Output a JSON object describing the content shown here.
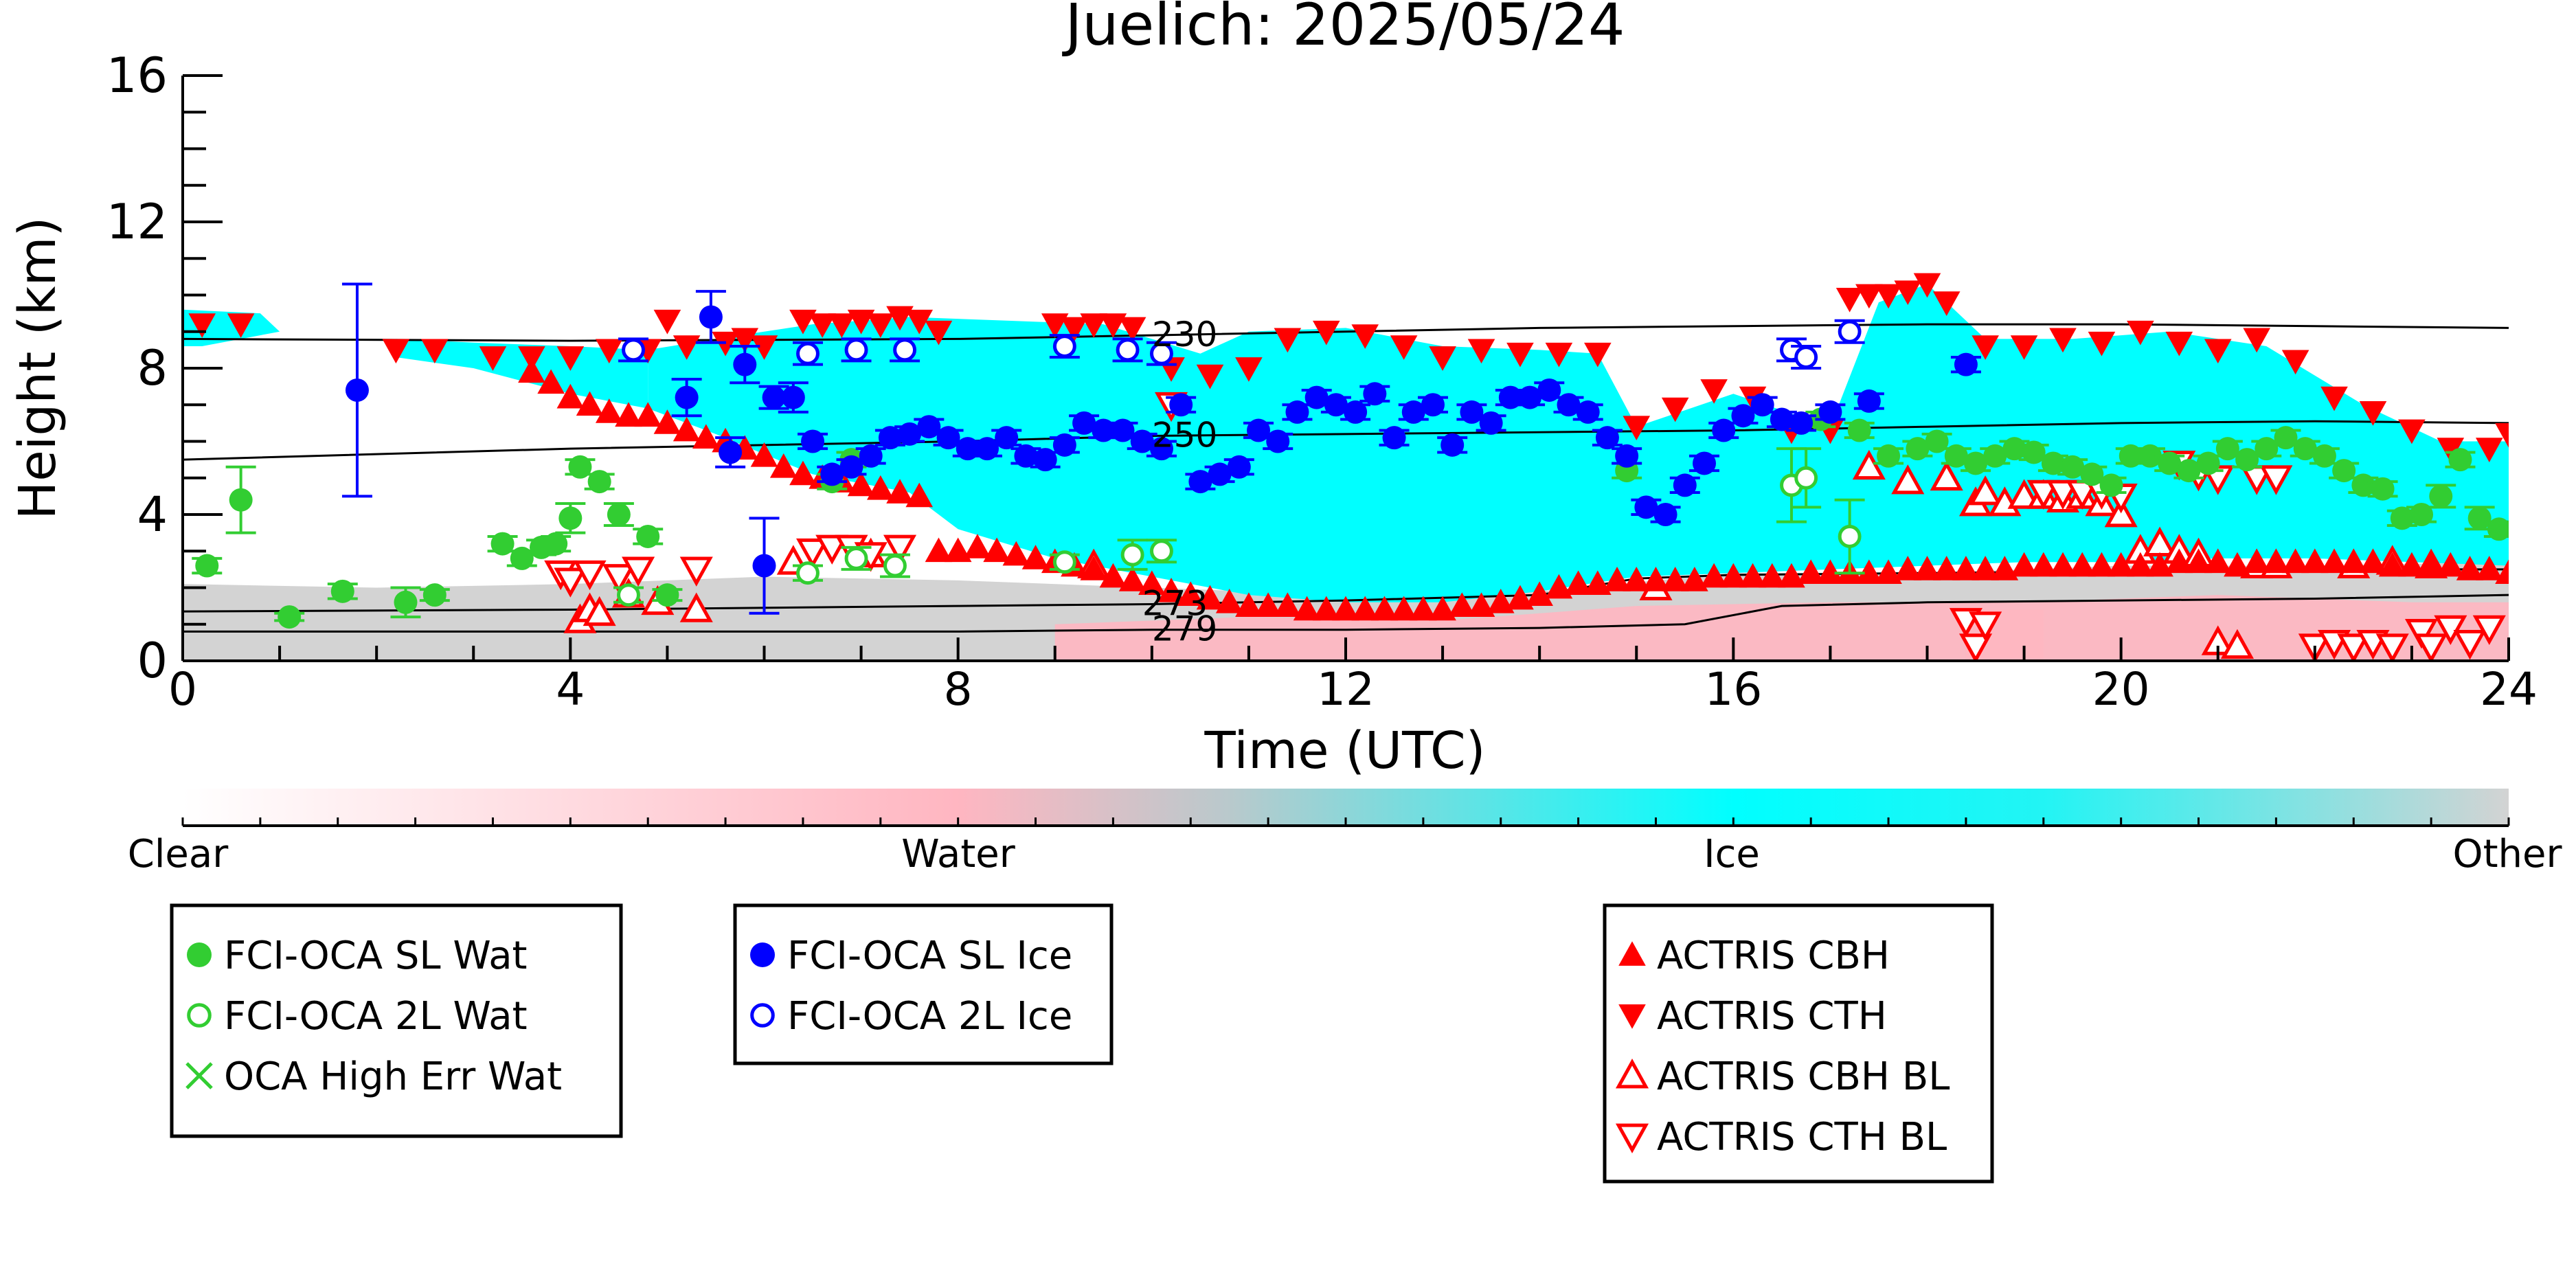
{
  "chart_data": {
    "type": "scatter",
    "title": "Juelich: 2025/05/24",
    "xlabel": "Time (UTC)",
    "ylabel": "Height (km)",
    "xlim": [
      0,
      24
    ],
    "ylim": [
      0,
      16
    ],
    "xticks": [
      0,
      4,
      8,
      12,
      16,
      20,
      24
    ],
    "yticks": [
      0,
      4,
      8,
      12,
      16
    ],
    "grid": false,
    "colorbar": {
      "labels": [
        "Clear",
        "Water",
        "Ice",
        "Other"
      ],
      "colors": [
        "#ffffff",
        "#ffb6c1",
        "#00ffff",
        "#d3d3d3"
      ]
    },
    "legends": [
      {
        "placement": "bottom-left",
        "entries": [
          {
            "label": "FCI-OCA SL Wat",
            "marker": "filled-circle",
            "color": "#32cd32"
          },
          {
            "label": "FCI-OCA 2L Wat",
            "marker": "open-circle",
            "color": "#32cd32"
          },
          {
            "label": "OCA High Err Wat",
            "marker": "cross",
            "color": "#32cd32"
          }
        ]
      },
      {
        "placement": "bottom-center-left",
        "entries": [
          {
            "label": "FCI-OCA SL Ice",
            "marker": "filled-circle",
            "color": "#0000ff"
          },
          {
            "label": "FCI-OCA 2L Ice",
            "marker": "open-circle",
            "color": "#0000ff"
          }
        ]
      },
      {
        "placement": "bottom-center-right",
        "entries": [
          {
            "label": "ACTRIS CBH",
            "marker": "filled-up-triangle",
            "color": "#ff0000"
          },
          {
            "label": "ACTRIS CTH",
            "marker": "filled-down-triangle",
            "color": "#ff0000"
          },
          {
            "label": "ACTRIS CBH BL",
            "marker": "open-up-triangle",
            "color": "#ff0000"
          },
          {
            "label": "ACTRIS CTH BL",
            "marker": "open-down-triangle",
            "color": "#ff0000"
          }
        ]
      }
    ],
    "contours": [
      {
        "label": "230",
        "x": [
          0,
          4,
          8,
          10,
          12,
          14,
          16,
          18,
          20,
          22,
          24
        ],
        "y": [
          8.8,
          8.75,
          8.8,
          8.9,
          9.0,
          9.1,
          9.15,
          9.2,
          9.2,
          9.15,
          9.1
        ]
      },
      {
        "label": "250",
        "x": [
          0,
          4,
          8,
          10,
          12,
          14,
          16,
          18,
          20,
          22,
          24
        ],
        "y": [
          5.5,
          5.8,
          6.0,
          6.15,
          6.2,
          6.25,
          6.3,
          6.4,
          6.5,
          6.55,
          6.5
        ]
      },
      {
        "label": "273",
        "x": [
          0,
          4,
          8,
          10,
          12,
          14,
          15,
          16,
          18,
          20,
          22,
          24
        ],
        "y": [
          1.35,
          1.4,
          1.5,
          1.55,
          1.65,
          1.8,
          2.25,
          2.35,
          2.4,
          2.45,
          2.5,
          2.5
        ]
      },
      {
        "label": "279",
        "x": [
          0,
          4,
          8,
          10,
          12,
          14,
          15.5,
          16.5,
          18,
          20,
          22,
          24
        ],
        "y": [
          0.8,
          0.8,
          0.8,
          0.85,
          0.85,
          0.9,
          1.0,
          1.5,
          1.6,
          1.65,
          1.7,
          1.8
        ]
      }
    ],
    "series": [
      {
        "name": "FCI-OCA SL Wat",
        "x": [
          0.25,
          0.6,
          1.1,
          1.65,
          2.3,
          2.6,
          3.3,
          3.5,
          3.7,
          3.85,
          4.0,
          4.1,
          4.3,
          4.5,
          4.8,
          5.0,
          6.7,
          6.9,
          14.9,
          16.9,
          17.3,
          17.6,
          17.9,
          18.1,
          18.3,
          18.5,
          18.7,
          18.9,
          19.1,
          19.3,
          19.5,
          19.7,
          19.9,
          20.1,
          20.3,
          20.5,
          20.7,
          20.9,
          21.1,
          21.3,
          21.5,
          21.7,
          21.9,
          22.1,
          22.3,
          22.5,
          22.7,
          22.9,
          23.1,
          23.3,
          23.5,
          23.7,
          23.9
        ],
        "y": [
          2.6,
          4.4,
          1.2,
          1.9,
          1.6,
          1.8,
          3.2,
          2.8,
          3.1,
          3.2,
          3.9,
          5.3,
          4.9,
          4.0,
          3.4,
          1.8,
          4.9,
          5.5,
          5.2,
          6.6,
          6.3,
          5.6,
          5.8,
          6.0,
          5.6,
          5.4,
          5.6,
          5.8,
          5.7,
          5.4,
          5.3,
          5.1,
          4.8,
          5.6,
          5.6,
          5.4,
          5.2,
          5.4,
          5.8,
          5.5,
          5.8,
          6.1,
          5.8,
          5.6,
          5.2,
          4.8,
          4.7,
          3.9,
          4.0,
          4.5,
          5.5,
          3.9,
          3.6
        ],
        "err": [
          0.2,
          0.9,
          0.1,
          0.2,
          0.4,
          0.15,
          0.2,
          0.2,
          0.2,
          0.2,
          0.4,
          0.2,
          0.2,
          0.3,
          0.2,
          0.15,
          0.2,
          0.2,
          0.2,
          0.2,
          0.2,
          0.2,
          0.2,
          0.2,
          0.2,
          0.2,
          0.2,
          0.2,
          0.2,
          0.2,
          0.2,
          0.2,
          0.2,
          0.2,
          0.2,
          0.2,
          0.2,
          0.2,
          0.2,
          0.2,
          0.2,
          0.2,
          0.2,
          0.2,
          0.2,
          0.2,
          0.2,
          0.2,
          0.2,
          0.3,
          0.2,
          0.3,
          0.2
        ]
      },
      {
        "name": "FCI-OCA 2L Wat",
        "x": [
          4.6,
          6.45,
          6.95,
          7.35,
          9.1,
          9.8,
          10.1,
          16.6,
          16.75,
          17.2
        ],
        "y": [
          1.8,
          2.4,
          2.8,
          2.6,
          2.7,
          2.9,
          3.0,
          4.8,
          5.0,
          3.4
        ],
        "err": [
          0.2,
          0.2,
          0.3,
          0.3,
          0.2,
          0.4,
          0.3,
          1.0,
          0.8,
          1.0
        ]
      },
      {
        "name": "OCA High Err Wat",
        "x": [],
        "y": []
      },
      {
        "name": "FCI-OCA SL Ice",
        "x": [
          1.8,
          5.2,
          5.45,
          5.65,
          5.8,
          6.0,
          6.1,
          6.3,
          6.5,
          6.7,
          6.9,
          7.1,
          7.3,
          7.5,
          7.7,
          7.9,
          8.1,
          8.3,
          8.5,
          8.7,
          8.9,
          9.1,
          9.3,
          9.5,
          9.7,
          9.9,
          10.1,
          10.3,
          10.5,
          10.7,
          10.9,
          11.1,
          11.3,
          11.5,
          11.7,
          11.9,
          12.1,
          12.3,
          12.5,
          12.7,
          12.9,
          13.1,
          13.3,
          13.5,
          13.7,
          13.9,
          14.1,
          14.3,
          14.5,
          14.7,
          14.9,
          15.1,
          15.3,
          15.5,
          15.7,
          15.9,
          16.1,
          16.3,
          16.5,
          16.7,
          17.0,
          17.4,
          18.4
        ],
        "y": [
          7.4,
          7.2,
          9.4,
          5.7,
          8.1,
          2.6,
          7.2,
          7.2,
          6.0,
          5.1,
          5.3,
          5.6,
          6.1,
          6.2,
          6.4,
          6.1,
          5.8,
          5.8,
          6.1,
          5.6,
          5.5,
          5.9,
          6.5,
          6.3,
          6.3,
          6.0,
          5.8,
          7.0,
          4.9,
          5.1,
          5.3,
          6.3,
          6.0,
          6.8,
          7.2,
          7.0,
          6.8,
          7.3,
          6.1,
          6.8,
          7.0,
          5.9,
          6.8,
          6.5,
          7.2,
          7.2,
          7.4,
          7.0,
          6.8,
          6.1,
          5.6,
          4.2,
          4.0,
          4.8,
          5.4,
          6.3,
          6.7,
          7.0,
          6.6,
          6.5,
          6.8,
          7.1,
          8.1
        ],
        "err": [
          2.9,
          0.5,
          0.7,
          0.4,
          0.5,
          1.3,
          0.3,
          0.4,
          0.2,
          0.2,
          0.2,
          0.2,
          0.2,
          0.2,
          0.2,
          0.2,
          0.2,
          0.2,
          0.2,
          0.2,
          0.2,
          0.2,
          0.2,
          0.2,
          0.2,
          0.2,
          0.2,
          0.2,
          0.2,
          0.2,
          0.2,
          0.2,
          0.2,
          0.2,
          0.2,
          0.2,
          0.2,
          0.2,
          0.2,
          0.2,
          0.2,
          0.2,
          0.2,
          0.2,
          0.2,
          0.2,
          0.2,
          0.2,
          0.2,
          0.2,
          0.2,
          0.2,
          0.2,
          0.2,
          0.2,
          0.2,
          0.2,
          0.2,
          0.2,
          0.2,
          0.2,
          0.2,
          0.2
        ]
      },
      {
        "name": "FCI-OCA 2L Ice",
        "x": [
          4.65,
          6.45,
          6.95,
          7.45,
          9.1,
          9.75,
          10.1,
          16.6,
          16.75,
          17.2
        ],
        "y": [
          8.5,
          8.4,
          8.5,
          8.5,
          8.6,
          8.5,
          8.4,
          8.5,
          8.3,
          9.0
        ],
        "err": [
          0.3,
          0.3,
          0.3,
          0.3,
          0.3,
          0.3,
          0.3,
          0.3,
          0.3,
          0.3
        ]
      },
      {
        "name": "ACTRIS CBH",
        "x": [
          3.6,
          3.8,
          4.0,
          4.2,
          4.4,
          4.6,
          4.8,
          5.0,
          5.2,
          5.4,
          5.6,
          5.8,
          6.0,
          6.2,
          6.4,
          6.6,
          6.8,
          7.0,
          7.2,
          7.4,
          7.6,
          7.8,
          8.0,
          8.2,
          8.4,
          8.6,
          8.8,
          9.0,
          9.2,
          9.4,
          9.6,
          9.8,
          10.0,
          10.2,
          10.4,
          10.6,
          10.8,
          11.0,
          11.2,
          11.4,
          11.6,
          11.8,
          12.0,
          12.2,
          12.4,
          12.6,
          12.8,
          13.0,
          13.2,
          13.4,
          13.6,
          13.8,
          14.0,
          14.2,
          14.4,
          14.6,
          14.8,
          15.0,
          15.2,
          15.4,
          15.6,
          15.8,
          16.0,
          16.2,
          16.4,
          16.6,
          16.8,
          17.0,
          17.2,
          17.4,
          17.6,
          17.8,
          18.0,
          18.2,
          18.4,
          18.6,
          18.8,
          19.0,
          19.2,
          19.4,
          19.6,
          19.8,
          20.0,
          20.2,
          20.4,
          20.6,
          20.8,
          21.0,
          21.2,
          21.4,
          21.6,
          21.8,
          22.0,
          22.2,
          22.4,
          22.6,
          22.8,
          23.0,
          23.2,
          23.4,
          23.6,
          23.8,
          24.0
        ],
        "y": [
          7.9,
          7.6,
          7.2,
          7.0,
          6.8,
          6.7,
          6.7,
          6.5,
          6.3,
          6.1,
          6.0,
          5.8,
          5.6,
          5.3,
          5.1,
          5.0,
          4.9,
          4.8,
          4.7,
          4.6,
          4.5,
          3.0,
          3.0,
          3.1,
          3.0,
          2.9,
          2.8,
          2.7,
          2.6,
          2.5,
          2.3,
          2.2,
          2.1,
          1.9,
          1.8,
          1.7,
          1.6,
          1.5,
          1.5,
          1.5,
          1.4,
          1.4,
          1.4,
          1.4,
          1.4,
          1.4,
          1.4,
          1.4,
          1.5,
          1.5,
          1.6,
          1.7,
          1.8,
          2.0,
          2.1,
          2.1,
          2.2,
          2.2,
          2.2,
          2.2,
          2.2,
          2.3,
          2.3,
          2.3,
          2.3,
          2.3,
          2.4,
          2.4,
          2.4,
          2.4,
          2.4,
          2.5,
          2.5,
          2.5,
          2.5,
          2.5,
          2.5,
          2.6,
          2.6,
          2.6,
          2.6,
          2.6,
          2.6,
          2.6,
          2.6,
          2.7,
          2.7,
          2.7,
          2.6,
          2.7,
          2.7,
          2.7,
          2.7,
          2.7,
          2.7,
          2.7,
          2.6,
          2.6,
          2.6,
          2.6,
          2.5,
          2.5,
          2.4
        ]
      },
      {
        "name": "ACTRIS CTH",
        "x": [
          0.2,
          0.6,
          2.2,
          2.6,
          3.2,
          3.6,
          4.0,
          4.4,
          4.8,
          5.0,
          5.2,
          5.6,
          5.8,
          6.0,
          6.4,
          6.6,
          6.8,
          7.0,
          7.2,
          7.4,
          7.6,
          7.8,
          9.0,
          9.2,
          9.4,
          9.6,
          9.8,
          10.2,
          10.6,
          11.0,
          11.4,
          11.8,
          12.2,
          12.6,
          13.0,
          13.4,
          13.8,
          14.2,
          14.6,
          15.0,
          15.4,
          15.8,
          16.2,
          16.6,
          17.0,
          17.2,
          17.4,
          17.6,
          17.8,
          18.0,
          18.2,
          18.6,
          19.0,
          19.4,
          19.8,
          20.2,
          20.6,
          21.0,
          21.4,
          21.8,
          22.2,
          22.6,
          23.0,
          23.4,
          23.8,
          24.0
        ],
        "y": [
          9.2,
          9.2,
          8.5,
          8.5,
          8.3,
          8.3,
          8.3,
          8.5,
          8.5,
          9.3,
          8.6,
          8.7,
          8.8,
          8.6,
          9.3,
          9.2,
          9.2,
          9.3,
          9.2,
          9.4,
          9.3,
          9.0,
          9.2,
          9.1,
          9.2,
          9.2,
          9.1,
          8.0,
          7.8,
          8.0,
          8.8,
          9.0,
          8.9,
          8.6,
          8.3,
          8.5,
          8.4,
          8.4,
          8.4,
          6.4,
          6.9,
          7.4,
          7.2,
          6.3,
          6.3,
          9.9,
          10.0,
          10.0,
          10.1,
          10.3,
          9.8,
          8.6,
          8.6,
          8.8,
          8.7,
          9.0,
          8.7,
          8.5,
          8.8,
          8.2,
          7.2,
          6.8,
          6.3,
          5.8,
          5.8,
          6.2
        ]
      },
      {
        "name": "ACTRIS CBH BL",
        "x": [
          4.1,
          4.2,
          4.3,
          4.6,
          4.9,
          5.3,
          6.3,
          7.1,
          9.4,
          15.2,
          17.4,
          17.8,
          18.2,
          18.5,
          18.6,
          18.8,
          19.0,
          19.2,
          19.4,
          19.6,
          19.8,
          20.0,
          20.2,
          20.4,
          20.6,
          20.8,
          21.0,
          21.2,
          21.4,
          21.6,
          22.4,
          22.8,
          23.2
        ],
        "y": [
          1.1,
          1.4,
          1.3,
          1.8,
          1.6,
          1.4,
          2.7,
          2.9,
          2.6,
          2.0,
          5.3,
          4.9,
          5.0,
          4.3,
          4.6,
          4.3,
          4.5,
          4.5,
          4.4,
          4.5,
          4.3,
          4.0,
          3.0,
          3.2,
          3.0,
          2.9,
          0.5,
          0.4,
          2.6,
          2.6,
          2.6,
          2.7,
          2.6
        ]
      },
      {
        "name": "ACTRIS CTH BL",
        "x": [
          3.9,
          4.0,
          4.2,
          4.5,
          4.7,
          5.3,
          6.5,
          6.7,
          6.9,
          7.1,
          7.4,
          10.2,
          18.4,
          18.5,
          18.6,
          19.2,
          19.4,
          19.6,
          19.8,
          20.0,
          20.6,
          20.8,
          21.0,
          21.4,
          21.6,
          22.0,
          22.2,
          22.4,
          22.6,
          22.8,
          23.1,
          23.2,
          23.4,
          23.6,
          23.8
        ],
        "y": [
          2.4,
          2.2,
          2.4,
          2.3,
          2.5,
          2.5,
          3.0,
          3.1,
          3.1,
          2.9,
          3.1,
          7.0,
          1.1,
          0.4,
          1.0,
          4.6,
          4.6,
          4.6,
          4.6,
          4.5,
          5.4,
          5.1,
          5.0,
          5.0,
          5.0,
          0.4,
          0.5,
          0.4,
          0.5,
          0.4,
          0.8,
          0.4,
          0.9,
          0.5,
          0.9
        ]
      }
    ]
  }
}
